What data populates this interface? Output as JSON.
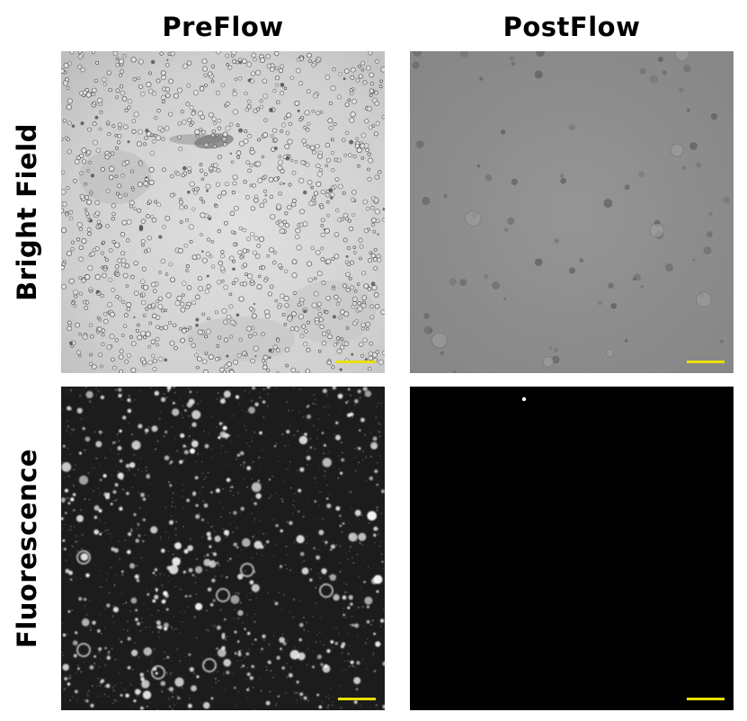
{
  "columns": {
    "preflow": "PreFlow",
    "postflow": "PostFlow"
  },
  "rows": {
    "bright_field": "Bright Field",
    "fluorescence": "Fluorescence"
  },
  "panels": [
    {
      "name": "bright-field-preflow",
      "kind": "bright-field",
      "density": "high"
    },
    {
      "name": "bright-field-postflow",
      "kind": "bright-field",
      "density": "low"
    },
    {
      "name": "fluorescence-preflow",
      "kind": "fluorescence",
      "density": "high"
    },
    {
      "name": "fluorescence-postflow",
      "kind": "fluorescence",
      "density": "single"
    }
  ],
  "colors": {
    "scale_bar": "#e8e000",
    "fluor_background": "#000000",
    "bf_pre_background": "#d2d2d2",
    "bf_post_background": "#8e8e8e"
  }
}
